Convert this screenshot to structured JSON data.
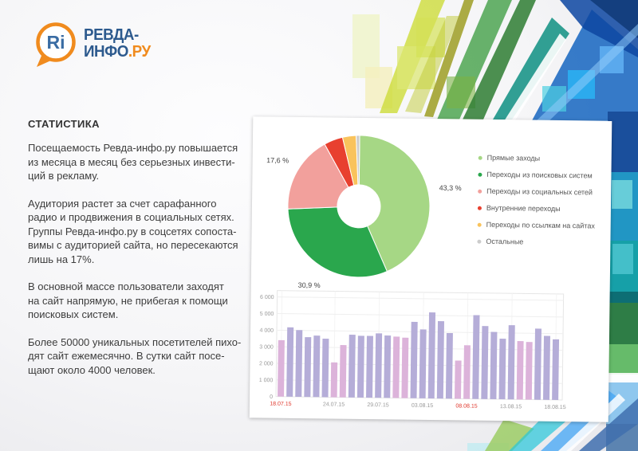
{
  "logo": {
    "bubble_text": "Ri",
    "title_line1": "РЕВДА-",
    "title_line2": "ИНФО",
    "title_line2_suffix": ".РУ",
    "accent_color": "#f08b1e",
    "text_color": "#2d5a8e",
    "bubble_text_color": "#3a6ca3"
  },
  "stats": {
    "heading": "СТАТИСТИКА",
    "paragraphs": [
      "Посещаемость Ревда-инфо.ру повышается\nиз месяца в месяц без серьезных инвести-\nций в рекламу.",
      "Аудитория растет за счет сарафанного\nрадио и продвижения в социальных сетях.\nГруппы Ревда-инфо.ру в соцсетях сопоста-\nвимы с аудиторией сайта, но пересекаются\nлишь на 17%.",
      "В основной массе пользователи заходят\nна сайт напрямую, не прибегая к помощи\nпоисковых систем.",
      "Более 50000 уникальных посетителей пихо-\nдят сайт ежемесячно. В сутки сайт посе-\nщают около 4000 человек."
    ]
  },
  "chart_data": [
    {
      "type": "pie",
      "donut": true,
      "legend_position": "right",
      "labels": [
        "Прямые заходы",
        "Переходы из поисковых систем",
        "Переходы из социальных сетей",
        "Внутренние переходы",
        "Переходы по ссылкам на сайтах",
        "Остальные"
      ],
      "values": [
        43.3,
        30.9,
        17.6,
        4.3,
        3.1,
        0.8
      ],
      "colors": [
        "#a6d785",
        "#2aa74d",
        "#f2a09c",
        "#e8402f",
        "#f9c35c",
        "#cccccc"
      ],
      "value_labels": [
        "43,3 %",
        "30,9 %",
        "17,6 %",
        "",
        "",
        ""
      ]
    },
    {
      "type": "bar",
      "ylim": [
        0,
        6000
      ],
      "y_ticks": [
        "0",
        "1 000",
        "2 000",
        "3 000",
        "4 000",
        "5 000",
        "6 000"
      ],
      "values": [
        3400,
        4180,
        4020,
        3600,
        3700,
        3520,
        2100,
        3150,
        3780,
        3720,
        3720,
        3880,
        3760,
        3700,
        3640,
        4600,
        4150,
        5180,
        4660,
        3950,
        2300,
        3230,
        5050,
        4400,
        4050,
        3650,
        4470,
        3520,
        3470,
        4280,
        3850,
        3650
      ],
      "weekend_indices": [
        0,
        6,
        7,
        13,
        14,
        20,
        21,
        27,
        28
      ],
      "bar_color": "#b5add8",
      "weekend_color": "#dcb3da",
      "x_ticks": [
        {
          "label": "18.07.15",
          "index": 0,
          "red": true
        },
        {
          "label": "24.07.15",
          "index": 6,
          "red": false
        },
        {
          "label": "29.07.15",
          "index": 11,
          "red": false
        },
        {
          "label": "03.08.15",
          "index": 16,
          "red": false
        },
        {
          "label": "08.08.15",
          "index": 21,
          "red": true
        },
        {
          "label": "13.08.15",
          "index": 26,
          "red": false
        },
        {
          "label": "18.08.15",
          "index": 31,
          "red": false
        }
      ]
    }
  ]
}
